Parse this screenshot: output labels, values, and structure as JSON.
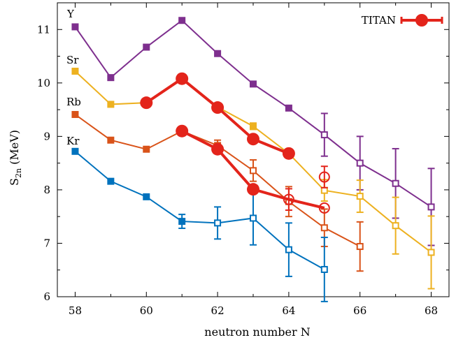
{
  "chart_data": {
    "type": "scatter",
    "xlabel": "neutron number N",
    "ylabel_main": "S",
    "ylabel_sub": "2n",
    "ylabel_unit": " (MeV)",
    "xlim": [
      57.5,
      68.5
    ],
    "ylim": [
      6,
      11.5
    ],
    "xticks": [
      58,
      60,
      62,
      64,
      66,
      68
    ],
    "yticks": [
      6,
      7,
      8,
      9,
      10,
      11
    ],
    "grid": false,
    "legend_position": "top-right",
    "legend": [
      {
        "label": "TITAN",
        "color": "#e3241b"
      }
    ],
    "series": [
      {
        "name": "Y",
        "color": "#7e2f8e",
        "x": [
          58,
          59,
          60,
          61,
          62,
          63,
          64,
          65,
          66,
          67,
          68
        ],
        "y": [
          11.05,
          10.1,
          10.67,
          11.17,
          10.55,
          9.98,
          9.53,
          9.03,
          8.5,
          8.12,
          7.68
        ],
        "err": [
          0,
          0,
          0,
          0,
          0,
          0,
          0,
          0.4,
          0.5,
          0.65,
          0.72
        ],
        "filled": [
          true,
          true,
          true,
          true,
          true,
          true,
          true,
          false,
          false,
          false,
          false
        ]
      },
      {
        "name": "Sr",
        "color": "#edb120",
        "x": [
          58,
          59,
          60,
          61,
          62,
          63,
          64,
          65,
          66,
          67,
          68
        ],
        "y": [
          10.22,
          9.6,
          9.63,
          10.07,
          9.55,
          9.19,
          8.68,
          7.99,
          7.88,
          7.33,
          6.83
        ],
        "err": [
          0,
          0,
          0,
          0,
          0,
          0.06,
          0,
          0.2,
          0.3,
          0.53,
          0.68
        ],
        "filled": [
          true,
          true,
          true,
          true,
          true,
          true,
          true,
          false,
          false,
          false,
          false
        ]
      },
      {
        "name": "Rb",
        "color": "#d95319",
        "x": [
          58,
          59,
          60,
          61,
          62,
          63,
          64,
          65,
          66
        ],
        "y": [
          9.41,
          8.93,
          8.76,
          9.1,
          8.83,
          8.36,
          7.78,
          7.29,
          6.94
        ],
        "err": [
          0,
          0,
          0,
          0,
          0.1,
          0.2,
          0.28,
          0.35,
          0.46
        ],
        "filled": [
          true,
          true,
          true,
          true,
          true,
          false,
          false,
          false,
          false
        ]
      },
      {
        "name": "Kr",
        "color": "#0072bd",
        "x": [
          58,
          59,
          60,
          61,
          62,
          63,
          64,
          65
        ],
        "y": [
          8.72,
          8.16,
          7.87,
          7.41,
          7.38,
          7.47,
          6.88,
          6.51
        ],
        "err": [
          0,
          0,
          0,
          0.13,
          0.3,
          0.5,
          0.5,
          0.6
        ],
        "filled": [
          true,
          true,
          true,
          true,
          false,
          false,
          false,
          false
        ]
      }
    ],
    "titan_series": [
      {
        "name": "TITAN Sr",
        "x": [
          60,
          61,
          62,
          63,
          64
        ],
        "y": [
          9.63,
          10.08,
          9.54,
          8.95,
          8.68
        ],
        "err": [
          0,
          0,
          0,
          0,
          0
        ],
        "filled": [
          true,
          true,
          true,
          true,
          true
        ]
      },
      {
        "name": "TITAN Rb",
        "x": [
          61,
          62,
          63,
          64,
          65
        ],
        "y": [
          9.1,
          8.76,
          8.01,
          7.82,
          7.66
        ],
        "err": [
          0,
          0,
          0,
          0.2,
          0
        ],
        "filled": [
          true,
          true,
          true,
          false,
          false
        ]
      },
      {
        "name": "TITAN Sr ext",
        "x": [
          65
        ],
        "y": [
          8.24
        ],
        "err": [
          0.2
        ],
        "filled": [
          false
        ]
      }
    ]
  }
}
